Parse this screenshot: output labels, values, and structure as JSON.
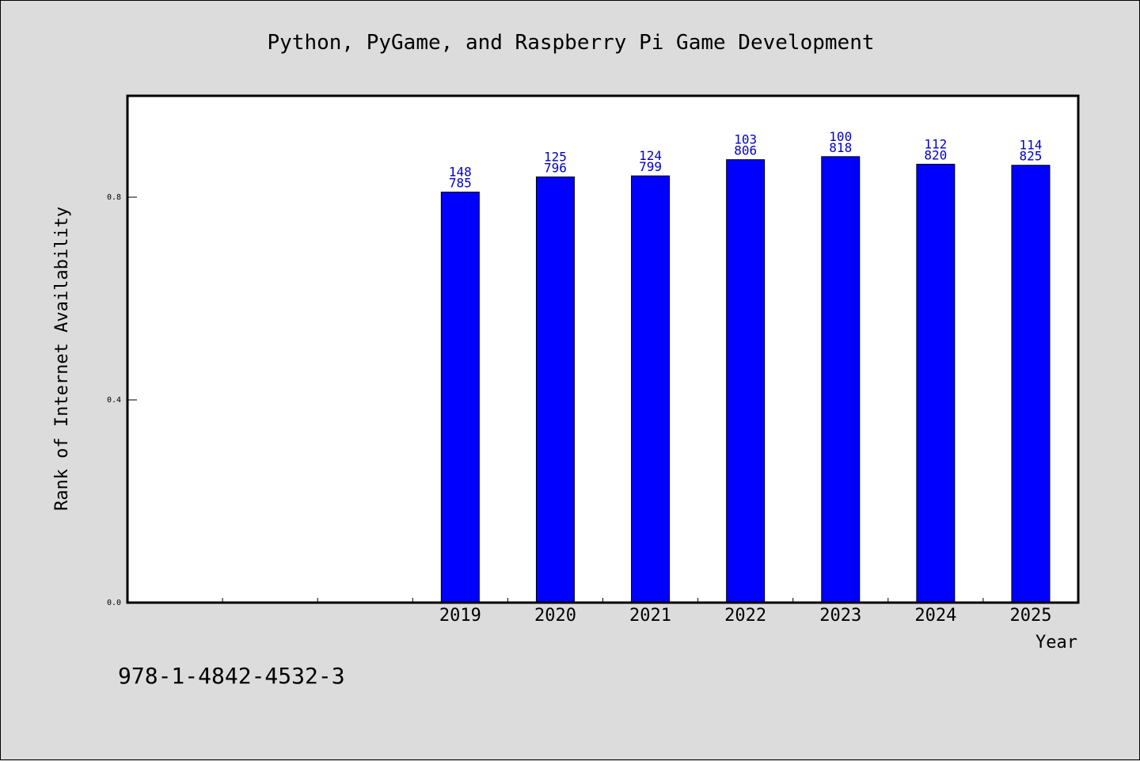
{
  "chart_data": {
    "type": "bar",
    "title": "Python, PyGame, and Raspberry Pi Game Development",
    "xlabel": "Year",
    "ylabel": "Rank of Internet Availability",
    "categories": [
      "",
      "",
      "",
      "2019",
      "2020",
      "2021",
      "2022",
      "2023",
      "2024",
      "2025"
    ],
    "values": [
      null,
      null,
      null,
      0.81,
      0.84,
      0.842,
      0.874,
      0.88,
      0.865,
      0.863
    ],
    "labels_top": [
      "",
      "",
      "",
      "148",
      "125",
      "124",
      "103",
      "100",
      "112",
      "114"
    ],
    "labels_bottom": [
      "",
      "",
      "",
      "785",
      "796",
      "799",
      "806",
      "818",
      "820",
      "825"
    ],
    "ylim": [
      0.0,
      1.0
    ],
    "yticks": [
      0.0,
      0.4,
      0.8
    ],
    "ytick_labels": [
      "0.0",
      "0.4",
      "0.8"
    ],
    "bar_color": "#0000ff",
    "label_color": "#0000cc",
    "grid": false
  },
  "footer": {
    "isbn": "978-1-4842-4532-3"
  }
}
